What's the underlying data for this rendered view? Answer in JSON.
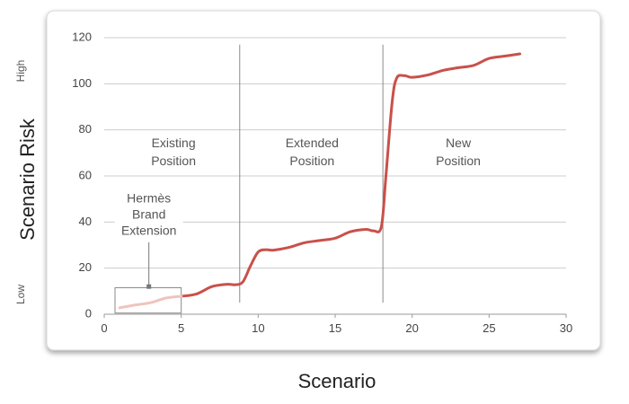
{
  "chart_data": {
    "type": "line",
    "xlabel": "Scenario",
    "ylabel": "Scenario Risk",
    "xlim": [
      0,
      30
    ],
    "ylim": [
      0,
      120
    ],
    "x_ticks": [
      0,
      5,
      10,
      15,
      20,
      25,
      30
    ],
    "y_ticks": [
      0,
      20,
      40,
      60,
      80,
      100,
      120
    ],
    "y_qualitative_labels": {
      "low": "Low",
      "high": "High"
    },
    "grid": {
      "horizontal": true,
      "vertical": false
    },
    "vertical_dividers": [
      8.8,
      18.1
    ],
    "regions": [
      {
        "lines": [
          "Existing",
          "Position"
        ],
        "x_center": 4.5,
        "y_center": 70
      },
      {
        "lines": [
          "Extended",
          "Position"
        ],
        "x_center": 13.5,
        "y_center": 70
      },
      {
        "lines": [
          "New",
          "Position"
        ],
        "x_center": 23,
        "y_center": 70
      }
    ],
    "annotation": {
      "lines": [
        "Hermès",
        "Brand",
        "Extension"
      ],
      "box_x": [
        0.7,
        5.0
      ],
      "box_y": [
        0.5,
        11.5
      ],
      "pointer_x": 2.9,
      "pointer_y": 12.2
    },
    "series": [
      {
        "color": "#c9504a",
        "x": [
          5,
          6,
          7,
          8,
          8.5,
          9,
          9.5,
          10,
          10.5,
          11,
          12,
          13,
          14,
          15,
          16,
          17,
          17.5,
          18,
          18.3,
          18.7,
          19,
          19.5,
          20,
          21,
          22,
          23,
          24,
          25,
          26,
          27
        ],
        "values": [
          7.8,
          8.8,
          12,
          13,
          12.8,
          14,
          21,
          27,
          28,
          27.8,
          29,
          31,
          32,
          33,
          35.8,
          36.8,
          36.2,
          38,
          60,
          92,
          102.5,
          103.5,
          102.8,
          103.8,
          105.8,
          107,
          108,
          111,
          112,
          113
        ]
      },
      {
        "color": "#f0c3be",
        "x": [
          1,
          2,
          3,
          4,
          5
        ],
        "values": [
          2.8,
          4,
          5,
          7,
          7.8
        ]
      }
    ]
  }
}
